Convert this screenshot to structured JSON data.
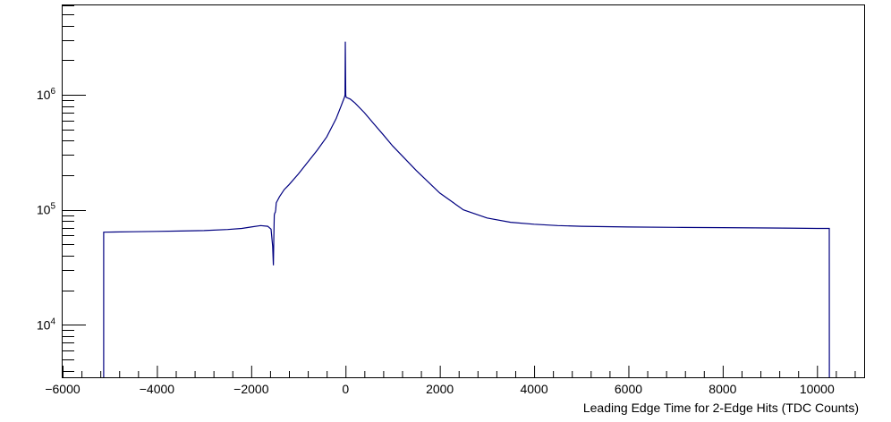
{
  "chart_data": {
    "type": "line",
    "title": "",
    "xlabel": "Leading Edge Time for 2-Edge Hits (TDC Counts)",
    "ylabel": "",
    "xlim": [
      -6000,
      11000
    ],
    "ylim": [
      3500,
      6000000
    ],
    "y_scale": "log",
    "grid": false,
    "legend": "none",
    "line_color": "#000080",
    "x_ticks": [
      {
        "value": -6000,
        "label": "−6000"
      },
      {
        "value": -4000,
        "label": "−4000"
      },
      {
        "value": -2000,
        "label": "−2000"
      },
      {
        "value": 0,
        "label": "0"
      },
      {
        "value": 2000,
        "label": "2000"
      },
      {
        "value": 4000,
        "label": "4000"
      },
      {
        "value": 6000,
        "label": "6000"
      },
      {
        "value": 8000,
        "label": "8000"
      },
      {
        "value": 10000,
        "label": "10000"
      }
    ],
    "y_ticks": [
      {
        "value": 10000,
        "base": "10",
        "exp": "4"
      },
      {
        "value": 100000,
        "base": "10",
        "exp": "5"
      },
      {
        "value": 1000000,
        "base": "10",
        "exp": "6"
      }
    ],
    "series": [
      {
        "x": [
          -5130,
          -5129,
          -4500,
          -4000,
          -3500,
          -3000,
          -2500,
          -2200,
          -2000,
          -1800,
          -1650,
          -1580,
          -1545,
          -1530,
          -1520,
          -1510,
          -1500,
          -1490,
          -1480,
          -1470,
          -1400,
          -1300,
          -1200,
          -1000,
          -800,
          -600,
          -400,
          -200,
          -100,
          -20,
          -10,
          -5,
          5,
          10,
          20,
          100,
          200,
          400,
          600,
          800,
          1000,
          1500,
          2000,
          2500,
          3000,
          3500,
          4000,
          4500,
          5000,
          6000,
          7000,
          8000,
          9000,
          10000,
          10260,
          10261
        ],
        "y": [
          3500,
          64000,
          64500,
          65000,
          65500,
          66000,
          67500,
          69000,
          71000,
          73000,
          72000,
          68000,
          48000,
          33000,
          58000,
          90000,
          94000,
          95000,
          100000,
          115000,
          130000,
          150000,
          165000,
          205000,
          260000,
          330000,
          430000,
          620000,
          790000,
          960000,
          1000000,
          2900000,
          1000000,
          960000,
          950000,
          920000,
          850000,
          700000,
          560000,
          450000,
          360000,
          220000,
          140000,
          100000,
          85000,
          78000,
          75000,
          73000,
          72000,
          71000,
          70500,
          70000,
          69500,
          69000,
          69000,
          3500
        ]
      }
    ]
  }
}
